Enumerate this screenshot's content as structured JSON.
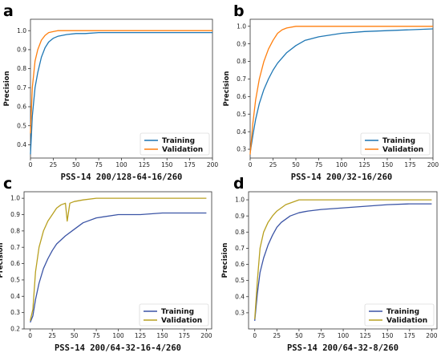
{
  "chart_data": [
    {
      "type": "line",
      "panel": "a",
      "xlabel": "PSS-14 200/128-64-16/260",
      "ylabel": "Precision",
      "xlim": [
        0,
        200
      ],
      "ylim": [
        0.33,
        1.06
      ],
      "xticks": [
        0,
        25,
        50,
        75,
        100,
        125,
        150,
        175,
        200
      ],
      "yticks": [
        0.4,
        0.5,
        0.6,
        0.7,
        0.8,
        0.9,
        1.0
      ],
      "ytick_labels": [
        "0.4",
        "0.5",
        "0.6",
        "0.7",
        "0.8",
        "0.9",
        "1.0"
      ],
      "legend_position": "bottom-right",
      "grid": false,
      "series": [
        {
          "name": "Training",
          "color": "#1f77b4",
          "x": [
            0,
            2,
            5,
            8,
            12,
            16,
            20,
            25,
            30,
            40,
            50,
            60,
            75,
            100,
            125,
            150,
            175,
            200
          ],
          "y": [
            0.35,
            0.55,
            0.7,
            0.78,
            0.86,
            0.91,
            0.94,
            0.96,
            0.97,
            0.98,
            0.985,
            0.985,
            0.99,
            0.99,
            0.99,
            0.99,
            0.99,
            0.99
          ]
        },
        {
          "name": "Validation",
          "color": "#ff7f0e",
          "x": [
            0,
            2,
            5,
            8,
            12,
            16,
            20,
            25,
            30,
            40,
            50,
            75,
            100,
            125,
            150,
            175,
            200
          ],
          "y": [
            0.46,
            0.7,
            0.84,
            0.9,
            0.95,
            0.975,
            0.99,
            0.995,
            1.0,
            1.0,
            1.0,
            1.0,
            1.0,
            1.0,
            1.0,
            1.0,
            1.0
          ]
        }
      ]
    },
    {
      "type": "line",
      "panel": "b",
      "xlabel": "PSS-14 200/32-16/260",
      "ylabel": "Precision",
      "xlim": [
        0,
        200
      ],
      "ylim": [
        0.25,
        1.04
      ],
      "xticks": [
        0,
        25,
        50,
        75,
        100,
        125,
        150,
        175,
        200
      ],
      "yticks": [
        0.3,
        0.4,
        0.5,
        0.6,
        0.7,
        0.8,
        0.9,
        1.0
      ],
      "ytick_labels": [
        "0.3",
        "0.4",
        "0.5",
        "0.6",
        "0.7",
        "0.8",
        "0.9",
        "1.0"
      ],
      "legend_position": "bottom-right",
      "grid": false,
      "series": [
        {
          "name": "Training",
          "color": "#1f77b4",
          "x": [
            0,
            3,
            6,
            10,
            15,
            20,
            25,
            30,
            40,
            50,
            60,
            75,
            100,
            125,
            150,
            175,
            200
          ],
          "y": [
            0.28,
            0.38,
            0.47,
            0.56,
            0.64,
            0.7,
            0.75,
            0.79,
            0.85,
            0.89,
            0.92,
            0.94,
            0.96,
            0.97,
            0.975,
            0.98,
            0.985
          ]
        },
        {
          "name": "Validation",
          "color": "#ff7f0e",
          "x": [
            0,
            3,
            6,
            10,
            15,
            20,
            25,
            30,
            35,
            40,
            50,
            60,
            75,
            100,
            125,
            150,
            175,
            200
          ],
          "y": [
            0.27,
            0.45,
            0.58,
            0.7,
            0.8,
            0.87,
            0.92,
            0.96,
            0.98,
            0.99,
            1.0,
            1.0,
            1.0,
            1.0,
            1.0,
            1.0,
            1.0,
            1.0
          ]
        }
      ]
    },
    {
      "type": "line",
      "panel": "c",
      "xlabel": "PSS-14 200/64-32-16-4/260",
      "ylabel": "Precision",
      "xlim": [
        -7,
        206
      ],
      "ylim": [
        0.2,
        1.04
      ],
      "xticks": [
        0,
        25,
        50,
        75,
        100,
        125,
        150,
        175,
        200
      ],
      "yticks": [
        0.2,
        0.3,
        0.4,
        0.5,
        0.6,
        0.7,
        0.8,
        0.9,
        1.0
      ],
      "ytick_labels": [
        "0.2",
        "0.3",
        "0.4",
        "0.5",
        "0.6",
        "0.7",
        "0.8",
        "0.9",
        "1.0"
      ],
      "legend_position": "bottom-right",
      "grid": false,
      "series": [
        {
          "name": "Training",
          "color": "#3b54a5",
          "x": [
            0,
            3,
            6,
            10,
            15,
            20,
            25,
            30,
            40,
            50,
            60,
            75,
            100,
            125,
            150,
            175,
            200
          ],
          "y": [
            0.24,
            0.28,
            0.38,
            0.48,
            0.57,
            0.63,
            0.68,
            0.72,
            0.77,
            0.81,
            0.85,
            0.88,
            0.9,
            0.9,
            0.91,
            0.91,
            0.91
          ]
        },
        {
          "name": "Validation",
          "color": "#b8a020",
          "x": [
            0,
            3,
            6,
            10,
            15,
            20,
            25,
            30,
            35,
            40,
            42,
            45,
            50,
            60,
            75,
            100,
            125,
            150,
            175,
            200
          ],
          "y": [
            0.25,
            0.32,
            0.55,
            0.7,
            0.8,
            0.86,
            0.9,
            0.94,
            0.96,
            0.97,
            0.86,
            0.97,
            0.98,
            0.99,
            1.0,
            1.0,
            1.0,
            1.0,
            1.0,
            1.0
          ]
        }
      ]
    },
    {
      "type": "line",
      "panel": "d",
      "xlabel": "PSS-14 200/64-32-8/260",
      "ylabel": "Precision",
      "xlim": [
        -7,
        206
      ],
      "ylim": [
        0.2,
        1.05
      ],
      "xticks": [
        0,
        25,
        50,
        75,
        100,
        125,
        150,
        175,
        200
      ],
      "yticks": [
        0.3,
        0.4,
        0.5,
        0.6,
        0.7,
        0.8,
        0.9,
        1.0
      ],
      "ytick_labels": [
        "0.3",
        "0.4",
        "0.5",
        "0.6",
        "0.7",
        "0.8",
        "0.9",
        "1.0"
      ],
      "legend_position": "bottom-right",
      "grid": false,
      "series": [
        {
          "name": "Training",
          "color": "#3b54a5",
          "x": [
            0,
            3,
            6,
            10,
            15,
            20,
            25,
            30,
            40,
            50,
            60,
            75,
            100,
            125,
            150,
            175,
            200
          ],
          "y": [
            0.25,
            0.42,
            0.55,
            0.64,
            0.72,
            0.78,
            0.83,
            0.86,
            0.9,
            0.92,
            0.93,
            0.94,
            0.95,
            0.96,
            0.97,
            0.975,
            0.975
          ]
        },
        {
          "name": "Validation",
          "color": "#b8a020",
          "x": [
            0,
            3,
            6,
            10,
            15,
            20,
            25,
            30,
            35,
            40,
            45,
            50,
            75,
            100,
            125,
            150,
            175,
            200
          ],
          "y": [
            0.26,
            0.5,
            0.7,
            0.8,
            0.86,
            0.9,
            0.93,
            0.95,
            0.97,
            0.98,
            0.99,
            1.0,
            1.0,
            1.0,
            1.0,
            1.0,
            1.0,
            1.0
          ]
        }
      ]
    }
  ]
}
